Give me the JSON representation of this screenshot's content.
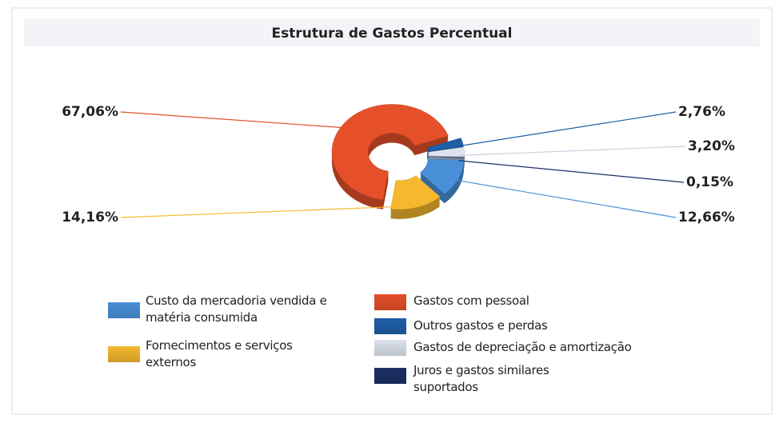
{
  "chart_data": {
    "type": "donut",
    "title": "Estrutura de Gastos Percentual",
    "series": [
      {
        "name": "Outros gastos e perdas",
        "color": "#1f5fa8",
        "value": 2.76,
        "value_label": "2,76%"
      },
      {
        "name": "Gastos de depreciação e amortização",
        "color": "#dde3ee",
        "value": 3.2,
        "value_label": "3,20%"
      },
      {
        "name": "Juros e gastos similares suportados",
        "color": "#1c2f66",
        "value": 0.15,
        "value_label": "0,15%"
      },
      {
        "name": "Custo da mercadoria vendida e matéria consumida",
        "color": "#4a90d9",
        "value": 12.66,
        "value_label": "12,66%"
      },
      {
        "name": "Fornecimentos e serviços externos",
        "color": "#f5b82e",
        "value": 14.16,
        "value_label": "14,16%"
      },
      {
        "name": "Gastos com pessoal",
        "color": "#e5502a",
        "value": 67.06,
        "value_label": "67,06%"
      }
    ]
  }
}
